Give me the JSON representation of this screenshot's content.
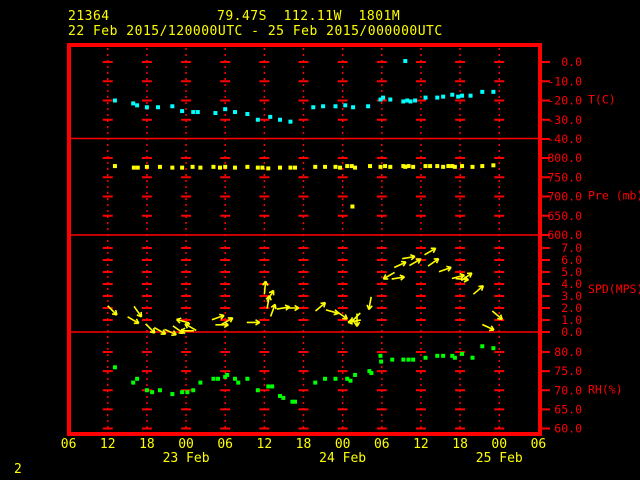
{
  "header": {
    "station_id": "21364",
    "location": "79.47S  112.11W  1801M",
    "period": "22 Feb 2015/120000UTC - 25 Feb 2015/000000UTC"
  },
  "footer": {
    "page_label": "2"
  },
  "colors": {
    "background": "#000000",
    "frame": "#ff0000",
    "axis_text": "#ff0000",
    "time_text": "#ffff00",
    "temperature": "#00ffff",
    "pressure": "#ffff00",
    "wind": "#ffff00",
    "humidity": "#00ff00"
  },
  "chart_data": {
    "type": "scatter",
    "title": "Upper-air station meteogram 21364, 22 Feb 2015 12UTC - 25 Feb 2015 00UTC",
    "grid": true,
    "legend_position": "right-axis-labels",
    "x_axis": {
      "range_hours": [
        0,
        72
      ],
      "tick_step_hours": 6,
      "tick_labels": [
        "06",
        "12",
        "18",
        "00",
        "06",
        "12",
        "18",
        "00",
        "06",
        "12",
        "18",
        "00",
        "06"
      ],
      "date_labels": [
        {
          "h": 18,
          "label": "23 Feb"
        },
        {
          "h": 42,
          "label": "24 Feb"
        },
        {
          "h": 66,
          "label": "25 Feb"
        }
      ]
    },
    "panels": [
      {
        "id": "temperature",
        "axis_label": "T(C)",
        "tick_labels": [
          "0.0",
          "-10.0",
          "-20.0",
          "-30.0",
          "-40.0"
        ],
        "tick_values": [
          0,
          -10,
          -20,
          -30,
          -40
        ],
        "ylim": [
          0,
          -40
        ],
        "marker_color": "#00ffff",
        "points": [
          [
            7.1,
            -20
          ],
          [
            9.9,
            -21.5
          ],
          [
            10.5,
            -22.5
          ],
          [
            12,
            -23.5
          ],
          [
            13.7,
            -23.5
          ],
          [
            15.9,
            -23
          ],
          [
            17.4,
            -25.5
          ],
          [
            19.1,
            -26
          ],
          [
            19.8,
            -26
          ],
          [
            22.5,
            -26.5
          ],
          [
            24,
            -24.5
          ],
          [
            25.5,
            -26
          ],
          [
            27.4,
            -27
          ],
          [
            29,
            -30
          ],
          [
            30.9,
            -28.5
          ],
          [
            32.4,
            -30
          ],
          [
            34,
            -31
          ],
          [
            37.5,
            -23.5
          ],
          [
            39,
            -23
          ],
          [
            40.9,
            -23
          ],
          [
            42.4,
            -22.5
          ],
          [
            43.6,
            -23.5
          ],
          [
            45.9,
            -23
          ],
          [
            47.8,
            -19.5
          ],
          [
            48.2,
            -18.5
          ],
          [
            49.3,
            -19.5
          ],
          [
            51.3,
            -20.5
          ],
          [
            51.9,
            -20
          ],
          [
            52.4,
            -20.5
          ],
          [
            53.1,
            -20
          ],
          [
            51.6,
            0.5
          ],
          [
            54.7,
            -18.5
          ],
          [
            56.5,
            -18.5
          ],
          [
            57.4,
            -18
          ],
          [
            58.8,
            -17
          ],
          [
            59.7,
            -18
          ],
          [
            60.3,
            -17.5
          ],
          [
            61.6,
            -17.5
          ],
          [
            63.4,
            -15.5
          ],
          [
            65.1,
            -15.5
          ]
        ]
      },
      {
        "id": "pressure",
        "axis_label": "Pre (mb)",
        "tick_labels": [
          "800.0",
          "750.0",
          "700.0",
          "650.0",
          "600.0"
        ],
        "tick_values": [
          800,
          750,
          700,
          650,
          600
        ],
        "ylim": [
          800,
          600
        ],
        "marker_color": "#ffff00",
        "points": [
          [
            7.1,
            779
          ],
          [
            10,
            775
          ],
          [
            10.6,
            775
          ],
          [
            12,
            777
          ],
          [
            14,
            777
          ],
          [
            15.9,
            775
          ],
          [
            17.4,
            775
          ],
          [
            19,
            777
          ],
          [
            20.2,
            775
          ],
          [
            22.2,
            777
          ],
          [
            23.2,
            775
          ],
          [
            24,
            777
          ],
          [
            25.5,
            775
          ],
          [
            27.4,
            777
          ],
          [
            29,
            775
          ],
          [
            29.7,
            775
          ],
          [
            30.6,
            773
          ],
          [
            32.4,
            775
          ],
          [
            34,
            775
          ],
          [
            34.7,
            775
          ],
          [
            37.8,
            777
          ],
          [
            39.3,
            777
          ],
          [
            40.9,
            777
          ],
          [
            41.6,
            775
          ],
          [
            42.7,
            779
          ],
          [
            43.4,
            779
          ],
          [
            43.9,
            775
          ],
          [
            43.5,
            674
          ],
          [
            46.2,
            779
          ],
          [
            47.8,
            777
          ],
          [
            48.5,
            779
          ],
          [
            49.3,
            777
          ],
          [
            51.3,
            779
          ],
          [
            51.6,
            777
          ],
          [
            52.1,
            779
          ],
          [
            52.8,
            777
          ],
          [
            54.7,
            779
          ],
          [
            55.4,
            779
          ],
          [
            56.5,
            779
          ],
          [
            57.4,
            777
          ],
          [
            58.2,
            779
          ],
          [
            58.8,
            779
          ],
          [
            59.2,
            777
          ],
          [
            60.3,
            779
          ],
          [
            61.9,
            777
          ],
          [
            63.4,
            779
          ],
          [
            65.1,
            781
          ]
        ]
      },
      {
        "id": "wind_speed",
        "axis_label": "SPD(MPS)",
        "tick_labels": [
          "7.0",
          "6.0",
          "5.0",
          "4.0",
          "3.0",
          "2.0",
          "1.0",
          "0.0"
        ],
        "tick_values": [
          7,
          6,
          5,
          4,
          3,
          2,
          1,
          0
        ],
        "ylim": [
          7,
          0
        ],
        "marker_color": "#ffff00",
        "dir_convention": "degrees clockwise from east(right); 90 = down-screen",
        "arrows": [
          {
            "h": 6.7,
            "spd": 1.8,
            "dir": 45
          },
          {
            "h": 9.9,
            "spd": 1.0,
            "dir": 30
          },
          {
            "h": 10.6,
            "spd": 1.7,
            "dir": 55
          },
          {
            "h": 12.5,
            "spd": 0.3,
            "dir": 45
          },
          {
            "h": 14.0,
            "spd": 0.1,
            "dir": 30
          },
          {
            "h": 15.6,
            "spd": 0.0,
            "dir": 25
          },
          {
            "h": 16.8,
            "spd": 0.2,
            "dir": 35
          },
          {
            "h": 17.5,
            "spd": 0.9,
            "dir": 195
          },
          {
            "h": 18.2,
            "spd": 0.1,
            "dir": 180
          },
          {
            "h": 18.7,
            "spd": 0.4,
            "dir": 210
          },
          {
            "h": 22.9,
            "spd": 1.2,
            "dir": 340
          },
          {
            "h": 23.5,
            "spd": 0.6,
            "dir": 0
          },
          {
            "h": 24.3,
            "spd": 0.9,
            "dir": 330
          },
          {
            "h": 28.3,
            "spd": 0.8,
            "dir": 0
          },
          {
            "h": 30.1,
            "spd": 3.7,
            "dir": 275
          },
          {
            "h": 30.6,
            "spd": 2.5,
            "dir": 280
          },
          {
            "h": 30.9,
            "spd": 3.0,
            "dir": 300
          },
          {
            "h": 31.3,
            "spd": 1.8,
            "dir": 290
          },
          {
            "h": 32.9,
            "spd": 2.0,
            "dir": 350
          },
          {
            "h": 34.3,
            "spd": 2.0,
            "dir": 0
          },
          {
            "h": 38.6,
            "spd": 2.1,
            "dir": 320
          },
          {
            "h": 40.4,
            "spd": 1.7,
            "dir": 15
          },
          {
            "h": 41.9,
            "spd": 1.4,
            "dir": 35
          },
          {
            "h": 43.8,
            "spd": 0.9,
            "dir": 170
          },
          {
            "h": 44.0,
            "spd": 1.2,
            "dir": 135
          },
          {
            "h": 44.2,
            "spd": 1.0,
            "dir": 90
          },
          {
            "h": 46.2,
            "spd": 2.4,
            "dir": 100
          },
          {
            "h": 49.1,
            "spd": 4.7,
            "dir": 150
          },
          {
            "h": 50.5,
            "spd": 4.5,
            "dir": 350
          },
          {
            "h": 50.8,
            "spd": 5.6,
            "dir": 335
          },
          {
            "h": 52.1,
            "spd": 6.2,
            "dir": 350
          },
          {
            "h": 53.1,
            "spd": 5.8,
            "dir": 330
          },
          {
            "h": 55.4,
            "spd": 6.7,
            "dir": 330
          },
          {
            "h": 55.9,
            "spd": 5.8,
            "dir": 325
          },
          {
            "h": 57.7,
            "spd": 5.2,
            "dir": 340
          },
          {
            "h": 59.7,
            "spd": 4.6,
            "dir": 345
          },
          {
            "h": 60.3,
            "spd": 4.4,
            "dir": 5
          },
          {
            "h": 61.0,
            "spd": 4.6,
            "dir": 325
          },
          {
            "h": 62.8,
            "spd": 3.5,
            "dir": 320
          },
          {
            "h": 64.3,
            "spd": 0.4,
            "dir": 25
          },
          {
            "h": 65.7,
            "spd": 1.4,
            "dir": 40
          }
        ]
      },
      {
        "id": "humidity",
        "axis_label": "RH(%)",
        "tick_labels": [
          "80.0",
          "75.0",
          "70.0",
          "65.0",
          "60.0"
        ],
        "tick_values": [
          80,
          75,
          70,
          65,
          60
        ],
        "ylim": [
          80,
          60
        ],
        "marker_color": "#00ff00",
        "points": [
          [
            7.1,
            76
          ],
          [
            9.9,
            72
          ],
          [
            10.5,
            73
          ],
          [
            12,
            70
          ],
          [
            12.8,
            69.5
          ],
          [
            14,
            70
          ],
          [
            15.9,
            69
          ],
          [
            17.4,
            69.5
          ],
          [
            18.2,
            69.5
          ],
          [
            19.1,
            70
          ],
          [
            20.2,
            72
          ],
          [
            22.2,
            73
          ],
          [
            22.9,
            73
          ],
          [
            24,
            73.5
          ],
          [
            24.3,
            74
          ],
          [
            25.5,
            73
          ],
          [
            26,
            72
          ],
          [
            27.4,
            73
          ],
          [
            29,
            70
          ],
          [
            30.6,
            71
          ],
          [
            31.2,
            71
          ],
          [
            32.4,
            68.5
          ],
          [
            32.9,
            68
          ],
          [
            34.3,
            67
          ],
          [
            34.7,
            67
          ],
          [
            37.8,
            72
          ],
          [
            39.3,
            73
          ],
          [
            40.9,
            73
          ],
          [
            42.7,
            73
          ],
          [
            43.2,
            72.5
          ],
          [
            43.9,
            74
          ],
          [
            46.1,
            75
          ],
          [
            46.4,
            74.5
          ],
          [
            47.8,
            79
          ],
          [
            47.9,
            77.5
          ],
          [
            49.6,
            78
          ],
          [
            51.3,
            78
          ],
          [
            52.1,
            78
          ],
          [
            52.8,
            78
          ],
          [
            54.7,
            78.5
          ],
          [
            56.5,
            79
          ],
          [
            57.4,
            79
          ],
          [
            58.8,
            79
          ],
          [
            59.2,
            78.5
          ],
          [
            60.3,
            79.5
          ],
          [
            61.9,
            78.5
          ],
          [
            63.4,
            81.5
          ],
          [
            65.1,
            81
          ]
        ]
      }
    ]
  }
}
